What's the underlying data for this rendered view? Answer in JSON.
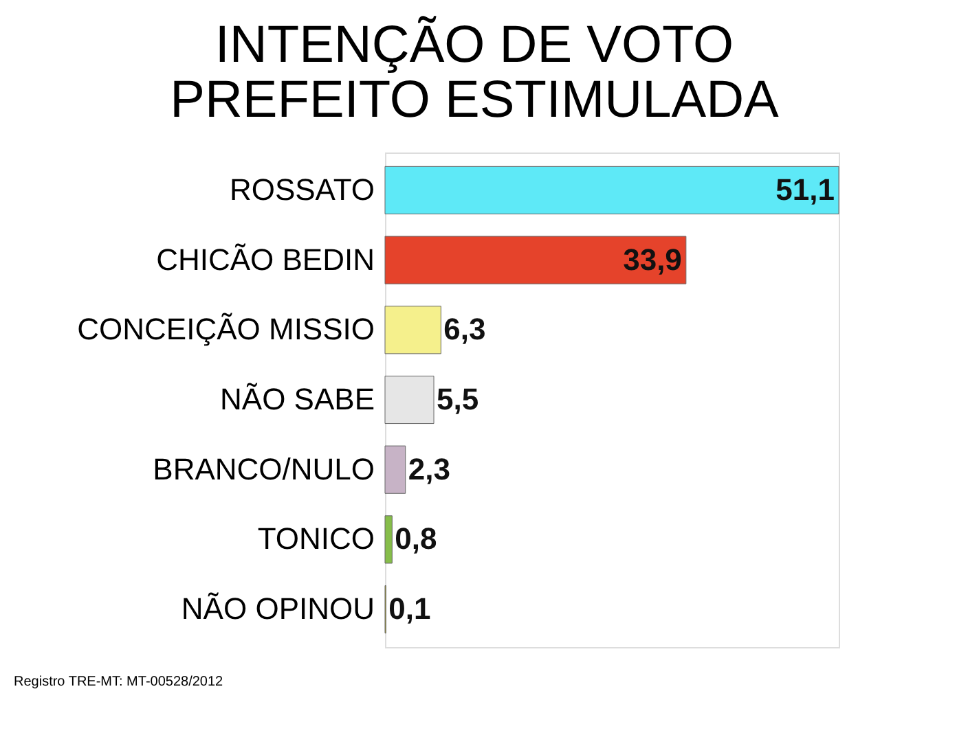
{
  "chart_data": {
    "type": "bar",
    "orientation": "horizontal",
    "title": [
      "INTENÇÃO DE VOTO",
      "PREFEITO ESTIMULADA"
    ],
    "categories": [
      "ROSSATO",
      "CHICÃO BEDIN",
      "CONCEIÇÃO MISSIO",
      "NÃO SABE",
      "BRANCO/NULO",
      "TONICO",
      "NÃO OPINOU"
    ],
    "values": [
      51.1,
      33.9,
      6.3,
      5.5,
      2.3,
      0.8,
      0.1
    ],
    "value_labels": [
      "51,1",
      "33,9",
      "6,3",
      "5,5",
      "2,3",
      "0,8",
      "0,1"
    ],
    "colors": [
      "#5ee9f7",
      "#e5432b",
      "#f5f08c",
      "#e6e6e6",
      "#c7b3c6",
      "#86bd4a",
      "#b5ac2c"
    ],
    "tick_labels": "y",
    "annotations": [
      "Registro TRE-MT: MT-00528/2012"
    ]
  }
}
